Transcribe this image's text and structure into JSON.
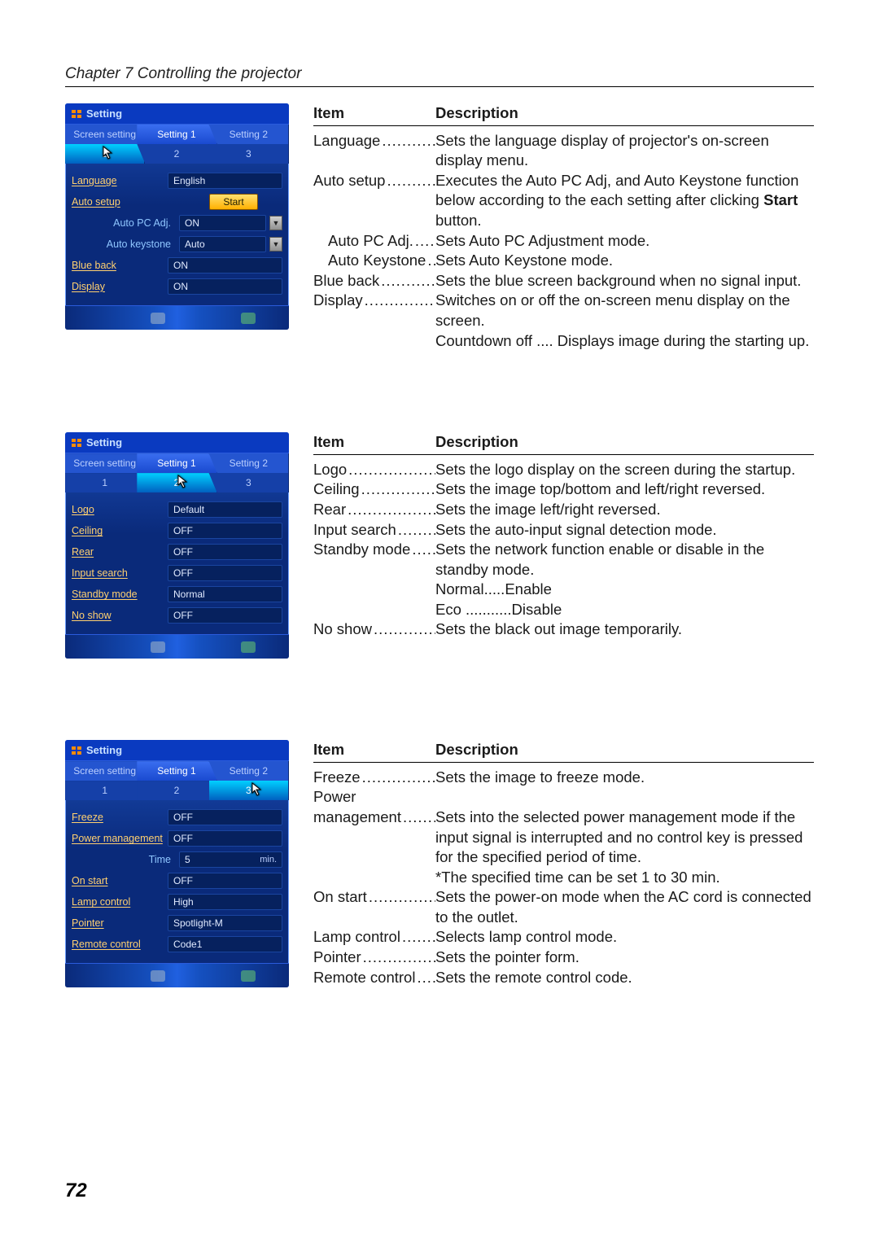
{
  "chapter_title": "Chapter 7 Controlling the projector",
  "page_number": "72",
  "header_item": "Item",
  "header_desc": "Description",
  "panels": [
    {
      "title": "Setting",
      "main_tabs": [
        "Screen setting",
        "Setting 1",
        "Setting 2"
      ],
      "main_active": 1,
      "sub_tabs": [
        "1",
        "2",
        "3"
      ],
      "sub_active": 0,
      "cursor_on_sub": 0,
      "rows": [
        {
          "label": "Language",
          "value": "English",
          "type": "field"
        },
        {
          "label": "Auto setup",
          "value": "Start",
          "type": "button"
        },
        {
          "label": "Auto PC Adj.",
          "value": "ON",
          "type": "dropdown",
          "sub": true
        },
        {
          "label": "Auto keystone",
          "value": "Auto",
          "type": "dropdown",
          "sub": true
        },
        {
          "label": "Blue back",
          "value": "ON",
          "type": "field"
        },
        {
          "label": "Display",
          "value": "ON",
          "type": "field"
        }
      ]
    },
    {
      "title": "Setting",
      "main_tabs": [
        "Screen setting",
        "Setting 1",
        "Setting 2"
      ],
      "main_active": 1,
      "sub_tabs": [
        "1",
        "2",
        "3"
      ],
      "sub_active": 1,
      "cursor_on_sub": 1,
      "rows": [
        {
          "label": "Logo",
          "value": "Default",
          "type": "field"
        },
        {
          "label": "Ceiling",
          "value": "OFF",
          "type": "field"
        },
        {
          "label": "Rear",
          "value": "OFF",
          "type": "field"
        },
        {
          "label": "Input search",
          "value": "OFF",
          "type": "field"
        },
        {
          "label": "Standby mode",
          "value": "Normal",
          "type": "field"
        },
        {
          "label": "No show",
          "value": "OFF",
          "type": "field"
        }
      ]
    },
    {
      "title": "Setting",
      "main_tabs": [
        "Screen setting",
        "Setting 1",
        "Setting 2"
      ],
      "main_active": 1,
      "sub_tabs": [
        "1",
        "2",
        "3"
      ],
      "sub_active": 2,
      "cursor_on_sub": 2,
      "rows": [
        {
          "label": "Freeze",
          "value": "OFF",
          "type": "field"
        },
        {
          "label": "Power management",
          "value": "OFF",
          "type": "field"
        },
        {
          "label": "Time",
          "value": "5",
          "type": "field",
          "sub": true,
          "unit": "min."
        },
        {
          "label": "On start",
          "value": "OFF",
          "type": "field"
        },
        {
          "label": "Lamp control",
          "value": "High",
          "type": "field"
        },
        {
          "label": "Pointer",
          "value": "Spotlight-M",
          "type": "field"
        },
        {
          "label": "Remote control",
          "value": "Code1",
          "type": "field"
        }
      ]
    }
  ],
  "desc_blocks": [
    [
      {
        "item": "Language",
        "text": "Sets the language display of projector's on-screen display menu."
      },
      {
        "item": "Auto setup",
        "text": "Executes the Auto PC Adj, and Auto Keystone function below according to the each setting after clicking <b>Start</b> button."
      },
      {
        "item": "Auto PC Adj.",
        "text": "Sets Auto PC Adjustment mode.",
        "sub": true
      },
      {
        "item": "Auto Keystone",
        "text": "Sets Auto Keystone mode.",
        "sub": true
      },
      {
        "item": "Blue back",
        "text": "Sets the blue screen background  when no signal input."
      },
      {
        "item": "Display",
        "text": "Switches on or off the on-screen menu display on the screen."
      },
      {
        "item": "",
        "text": "Countdown off .... Displays image during the starting up.",
        "nodots": true
      }
    ],
    [
      {
        "item": "Logo",
        "text": "Sets the logo display on the screen during the startup."
      },
      {
        "item": "Ceiling",
        "text": "Sets the image top/bottom and left/right reversed."
      },
      {
        "item": "Rear",
        "text": "Sets the image left/right reversed."
      },
      {
        "item": "Input search",
        "text": "Sets the auto-input signal detection mode."
      },
      {
        "item": "Standby mode",
        "text": "Sets the network function enable or disable in the standby mode."
      },
      {
        "item": "",
        "text": "Normal.....Enable",
        "nodots": true
      },
      {
        "item": "",
        "text": "Eco ...........Disable",
        "nodots": true
      },
      {
        "item": "No show",
        "text": "Sets the black out image temporarily."
      }
    ],
    [
      {
        "item": "Freeze",
        "text": "Sets the image to freeze mode."
      },
      {
        "item": "Power",
        "text": "",
        "nodots": true
      },
      {
        "item": "management",
        "text": "Sets into the selected power management mode if the input signal is interrupted and no control key is pressed for the specified period of time."
      },
      {
        "item": "",
        "text": "*The specified time can be set 1 to 30 min.",
        "nodots": true
      },
      {
        "item": "On start",
        "text": "Sets the power-on mode when the AC cord  is connected to the outlet."
      },
      {
        "item": "Lamp control",
        "text": "Selects lamp control mode."
      },
      {
        "item": "Pointer",
        "text": "Sets the pointer form."
      },
      {
        "item": "Remote control",
        "text": "Sets the remote control code."
      }
    ]
  ]
}
